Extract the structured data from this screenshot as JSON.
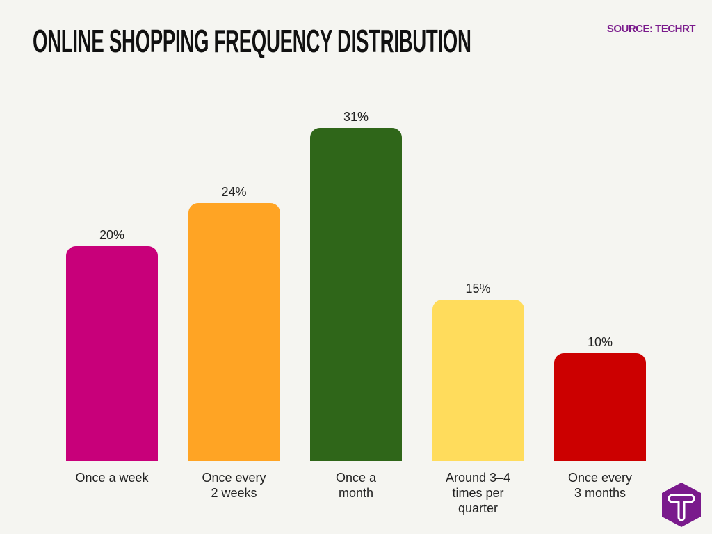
{
  "chart_data": {
    "type": "bar",
    "title": "ONLINE SHOPPING FREQUENCY DISTRIBUTION",
    "source": "SOURCE: TECHRT",
    "categories": [
      "Once a week",
      "Once every 2 weeks",
      "Once a month",
      "Around 3–4 times per quarter",
      "Once every 3 months"
    ],
    "category_lines": [
      [
        "Once a week"
      ],
      [
        "Once every",
        "2 weeks"
      ],
      [
        "Once a",
        "month"
      ],
      [
        "Around 3–4",
        "times per",
        "quarter"
      ],
      [
        "Once every",
        "3 months"
      ]
    ],
    "values": [
      20,
      24,
      31,
      15,
      10
    ],
    "labels": [
      "20%",
      "24%",
      "31%",
      "15%",
      "10%"
    ],
    "colors": [
      "#c8007a",
      "#ffa424",
      "#2f6619",
      "#ffdc5c",
      "#cc0000"
    ],
    "ylim": [
      0,
      31
    ],
    "grid": false,
    "legend": "none"
  },
  "brand": {
    "logo": "T",
    "logo_color": "#7a1a8c"
  }
}
